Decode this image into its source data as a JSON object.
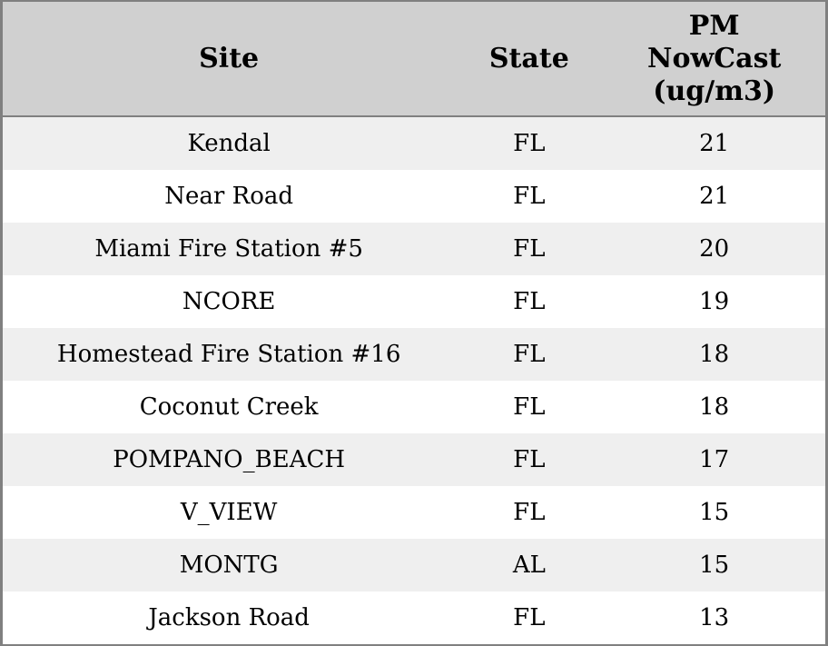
{
  "colors": {
    "header_bg": "#d0d0d0",
    "row_alt_bg": "#efefef",
    "row_bg": "#ffffff",
    "border": "#808080",
    "text": "#000000"
  },
  "table": {
    "columns": [
      {
        "label": "Site"
      },
      {
        "label": "State"
      },
      {
        "label": "PM\nNowCast\n(ug/m3)"
      }
    ],
    "rows": [
      {
        "site": "Kendal",
        "state": "FL",
        "value": "21"
      },
      {
        "site": "Near Road",
        "state": "FL",
        "value": "21"
      },
      {
        "site": "Miami Fire Station #5",
        "state": "FL",
        "value": "20"
      },
      {
        "site": "NCORE",
        "state": "FL",
        "value": "19"
      },
      {
        "site": "Homestead Fire Station #16",
        "state": "FL",
        "value": "18"
      },
      {
        "site": "Coconut Creek",
        "state": "FL",
        "value": "18"
      },
      {
        "site": "POMPANO_BEACH",
        "state": "FL",
        "value": "17"
      },
      {
        "site": "V_VIEW",
        "state": "FL",
        "value": "15"
      },
      {
        "site": "MONTG",
        "state": "AL",
        "value": "15"
      },
      {
        "site": "Jackson Road",
        "state": "FL",
        "value": "13"
      }
    ]
  },
  "chart_data": {
    "type": "table",
    "title": "",
    "columns": [
      "Site",
      "State",
      "PM NowCast (ug/m3)"
    ],
    "rows": [
      [
        "Kendal",
        "FL",
        21
      ],
      [
        "Near Road",
        "FL",
        21
      ],
      [
        "Miami Fire Station #5",
        "FL",
        20
      ],
      [
        "NCORE",
        "FL",
        19
      ],
      [
        "Homestead Fire Station #16",
        "FL",
        18
      ],
      [
        "Coconut Creek",
        "FL",
        18
      ],
      [
        "POMPANO_BEACH",
        "FL",
        17
      ],
      [
        "V_VIEW",
        "FL",
        15
      ],
      [
        "MONTG",
        "AL",
        15
      ],
      [
        "Jackson Road",
        "FL",
        13
      ]
    ],
    "layout_hints": {
      "header_wrap_lines": [
        "PM",
        "NowCast",
        "(ug/m3)"
      ],
      "row_striping": "odd rows light gray, even rows white",
      "text_align": "center"
    }
  }
}
